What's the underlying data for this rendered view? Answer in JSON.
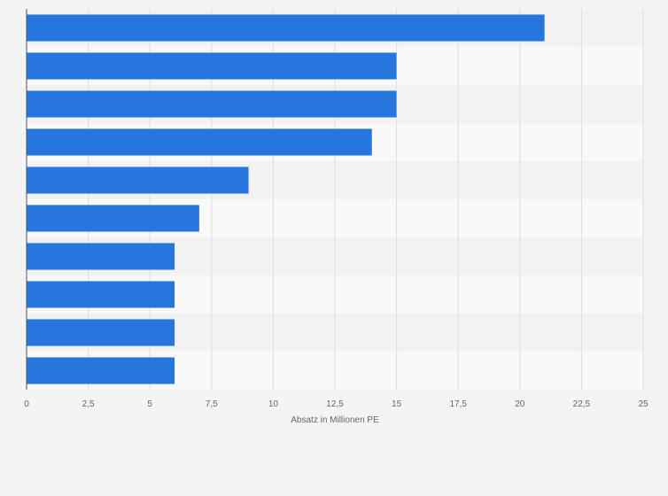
{
  "chart_data": {
    "type": "bar",
    "orientation": "horizontal",
    "title": "",
    "xlabel": "Absatz in Millionen PE",
    "ylabel": "",
    "categories": [
      "",
      "",
      "",
      "",
      "",
      "",
      "",
      "",
      "",
      ""
    ],
    "values": [
      21,
      15,
      15,
      14,
      9,
      7,
      6,
      6,
      6,
      6
    ],
    "xlim": [
      0,
      25
    ],
    "xticks": [
      0,
      2.5,
      5,
      7.5,
      10,
      12.5,
      15,
      17.5,
      20,
      22.5,
      25
    ],
    "xtick_labels": [
      "0",
      "2,5",
      "5",
      "7,5",
      "10",
      "12,5",
      "15",
      "17,5",
      "20",
      "22,5",
      "25"
    ],
    "grid": true,
    "colors": {
      "bar": "#2776de",
      "band_a": "#f2f2f2",
      "band_b": "#f9f9f9",
      "grid": "#dedede",
      "axis": "#555555"
    }
  }
}
